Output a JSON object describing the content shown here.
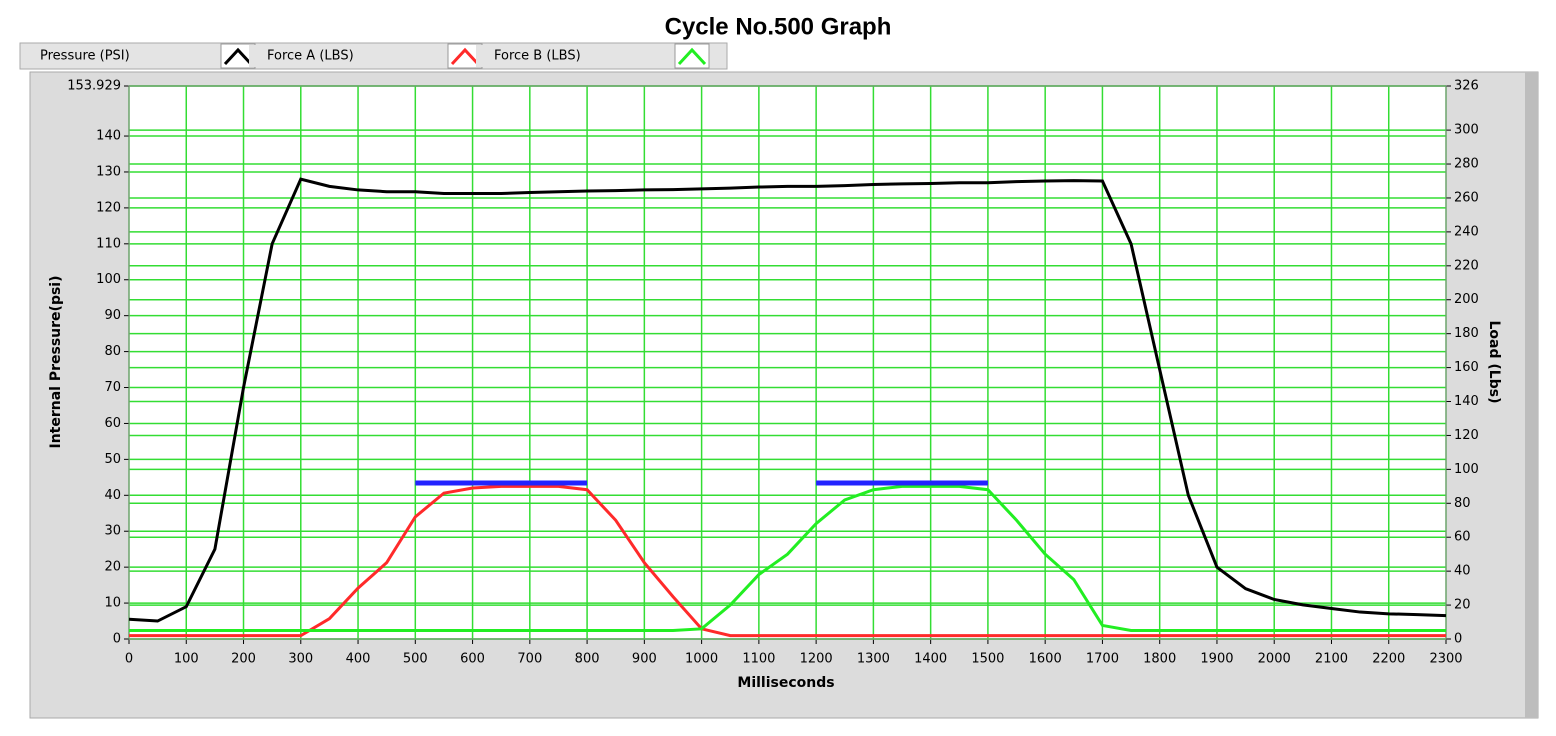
{
  "chart_data": {
    "type": "line",
    "title": "Cycle No.500  Graph",
    "x_label": "Milliseconds",
    "y_label": "Internal Pressure(psi)",
    "y2_label": "Load (Lbs)",
    "x": [
      0,
      50,
      100,
      150,
      200,
      250,
      300,
      350,
      400,
      450,
      500,
      550,
      600,
      650,
      700,
      750,
      800,
      850,
      900,
      950,
      1000,
      1050,
      1100,
      1150,
      1200,
      1250,
      1300,
      1350,
      1400,
      1450,
      1500,
      1550,
      1600,
      1650,
      1700,
      1750,
      1800,
      1850,
      1900,
      1950,
      2000,
      2050,
      2100,
      2150,
      2200,
      2250,
      2300
    ],
    "series": [
      {
        "name": "Pressure (PSI)",
        "color": "#000000",
        "values": [
          5.5,
          5,
          9,
          25,
          70,
          110,
          128,
          126,
          125,
          124.5,
          124.5,
          124,
          124,
          124,
          124.3,
          124.5,
          124.7,
          124.8,
          125,
          125.1,
          125.3,
          125.5,
          125.8,
          126,
          126,
          126.2,
          126.5,
          126.7,
          126.8,
          127,
          127,
          127.3,
          127.5,
          127.6,
          127.5,
          110,
          75,
          40,
          20,
          14,
          11,
          9.5,
          8.5,
          7.5,
          7,
          6.8,
          6.5
        ]
      },
      {
        "name": "Force A (LBS)",
        "color": "#ff2a2a",
        "axis": "y2",
        "values": [
          2,
          2,
          2,
          2,
          2,
          2,
          2,
          12,
          30,
          45,
          72,
          86,
          89,
          90,
          90,
          90,
          88,
          70,
          45,
          25,
          6,
          2,
          2,
          2,
          2,
          2,
          2,
          2,
          2,
          2,
          2,
          2,
          2,
          2,
          2,
          2,
          2,
          2,
          2,
          2,
          2,
          2,
          2,
          2,
          2,
          2,
          2
        ]
      },
      {
        "name": "Force B (LBS)",
        "color": "#22ee22",
        "axis": "y2",
        "values": [
          5,
          5,
          5,
          5,
          5,
          5,
          5,
          5,
          5,
          5,
          5,
          5,
          5,
          5,
          5,
          5,
          5,
          5,
          5,
          5,
          6,
          20,
          38,
          50,
          68,
          82,
          88,
          90,
          90,
          90,
          88,
          70,
          50,
          35,
          8,
          5,
          5,
          5,
          5,
          5,
          5,
          5,
          5,
          5,
          5,
          5,
          5
        ]
      },
      {
        "color": "#2222ff",
        "axis": "y2",
        "values": [
          null,
          null,
          null,
          null,
          null,
          null,
          null,
          null,
          null,
          null,
          92,
          92,
          92,
          92,
          92,
          92,
          92,
          null,
          null,
          null,
          null,
          null,
          null,
          null,
          92,
          92,
          92,
          92,
          92,
          92,
          92,
          null,
          null,
          null,
          null,
          null,
          null,
          null,
          null,
          null,
          null,
          null,
          null,
          null,
          null,
          null,
          null
        ]
      }
    ],
    "xlim": [
      0,
      2300
    ],
    "xticks": [
      0,
      100,
      200,
      300,
      400,
      500,
      600,
      700,
      800,
      900,
      1000,
      1100,
      1200,
      1300,
      1400,
      1500,
      1600,
      1700,
      1800,
      1900,
      2000,
      2100,
      2200,
      2300
    ],
    "ylim": [
      0,
      153.929
    ],
    "yticks": [
      0,
      10,
      20,
      30,
      40,
      50,
      60,
      70,
      80,
      90,
      100,
      110,
      120,
      130,
      140,
      153.929
    ],
    "y2lim": [
      0,
      326
    ],
    "y2ticks": [
      0,
      20,
      40,
      60,
      80,
      100,
      120,
      140,
      160,
      180,
      200,
      220,
      240,
      260,
      280,
      300,
      326
    ],
    "grid": true,
    "grid_color": "#33dd33"
  }
}
